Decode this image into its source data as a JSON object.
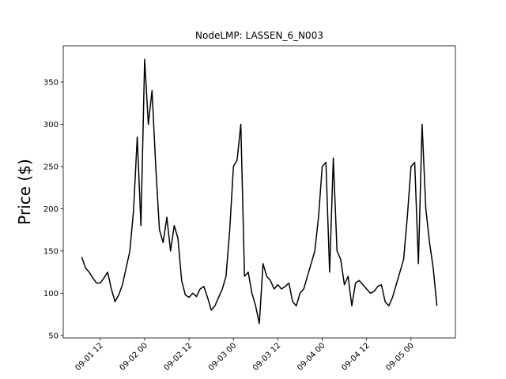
{
  "chart_data": {
    "type": "line",
    "title": "NodeLMP: LASSEN_6_N003",
    "ylabel": "Price ($)",
    "x": [
      "09-01 07",
      "09-01 08",
      "09-01 09",
      "09-01 10",
      "09-01 11",
      "09-01 12",
      "09-01 13",
      "09-01 14",
      "09-01 15",
      "09-01 16",
      "09-01 17",
      "09-01 18",
      "09-01 19",
      "09-01 20",
      "09-01 21",
      "09-01 22",
      "09-01 23",
      "09-02 00",
      "09-02 01",
      "09-02 02",
      "09-02 03",
      "09-02 04",
      "09-02 05",
      "09-02 06",
      "09-02 07",
      "09-02 08",
      "09-02 09",
      "09-02 10",
      "09-02 11",
      "09-02 12",
      "09-02 13",
      "09-02 14",
      "09-02 15",
      "09-02 16",
      "09-02 17",
      "09-02 18",
      "09-02 19",
      "09-02 20",
      "09-02 21",
      "09-02 22",
      "09-02 23",
      "09-03 00",
      "09-03 01",
      "09-03 02",
      "09-03 03",
      "09-03 04",
      "09-03 05",
      "09-03 06",
      "09-03 07",
      "09-03 08",
      "09-03 09",
      "09-03 10",
      "09-03 11",
      "09-03 12",
      "09-03 13",
      "09-03 14",
      "09-03 15",
      "09-03 16",
      "09-03 17",
      "09-03 18",
      "09-03 19",
      "09-03 20",
      "09-03 21",
      "09-03 22",
      "09-03 23",
      "09-04 00",
      "09-04 01",
      "09-04 02",
      "09-04 03",
      "09-04 04",
      "09-04 05",
      "09-04 06",
      "09-04 07",
      "09-04 08",
      "09-04 09",
      "09-04 10",
      "09-04 11",
      "09-04 12",
      "09-04 13",
      "09-04 14",
      "09-04 15",
      "09-04 16",
      "09-04 17",
      "09-04 18",
      "09-04 19",
      "09-04 20",
      "09-04 21",
      "09-04 22",
      "09-04 23",
      "09-05 00",
      "09-05 01",
      "09-05 02",
      "09-05 03",
      "09-05 04",
      "09-05 05",
      "09-05 06",
      "09-05 07"
    ],
    "series": [
      {
        "name": "LASSEN_6_N003",
        "color": "#000000",
        "values": [
          143,
          130,
          125,
          118,
          112,
          112,
          118,
          125,
          105,
          90,
          98,
          110,
          130,
          150,
          198,
          285,
          180,
          377,
          300,
          340,
          250,
          175,
          160,
          190,
          150,
          180,
          165,
          115,
          98,
          95,
          100,
          96,
          105,
          108,
          95,
          80,
          85,
          95,
          105,
          120,
          175,
          250,
          258,
          300,
          120,
          125,
          100,
          85,
          64,
          135,
          120,
          115,
          105,
          110,
          105,
          108,
          112,
          90,
          85,
          100,
          105,
          120,
          135,
          150,
          190,
          250,
          255,
          125,
          260,
          150,
          140,
          110,
          120,
          85,
          112,
          115,
          110,
          105,
          100,
          102,
          108,
          110,
          90,
          85,
          95,
          110,
          125,
          140,
          190,
          250,
          255,
          135,
          300,
          200,
          160,
          130,
          85
        ]
      }
    ],
    "xlim": [
      "09-01 02",
      "09-05 12"
    ],
    "xticks": [
      "09-01 12",
      "09-02 00",
      "09-02 12",
      "09-03 00",
      "09-03 12",
      "09-04 00",
      "09-04 12",
      "09-05 00"
    ],
    "ylim": [
      47,
      393
    ],
    "yticks": [
      50,
      100,
      150,
      200,
      250,
      300,
      350
    ]
  }
}
